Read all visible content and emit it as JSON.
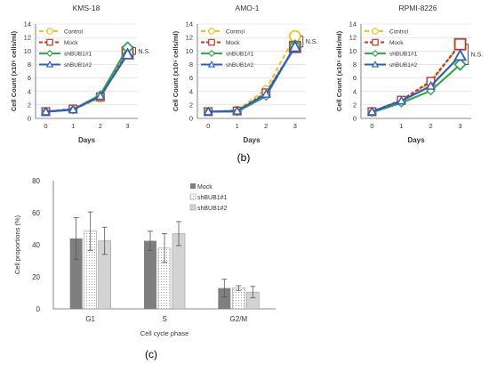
{
  "figure": {
    "panel_labels": [
      "(b)",
      "(c)"
    ]
  },
  "colors": {
    "Control": "#f0c419",
    "Mock": "#c0392b",
    "shBUB1#1": "#3aa64a",
    "shBUB1#2": "#2b5fc7",
    "bar_mock": "#7f7f7f",
    "bar_shbub1_1": "#ffffff",
    "bar_shbub1_2": "#d3d3d3",
    "axis": "#666666",
    "grid": "#d9d9d9"
  },
  "chart_data": [
    {
      "type": "line",
      "title": "KMS-18",
      "xlabel": "Days",
      "ylabel": "Cell Count  (x10⁵ cells/ml)",
      "x": [
        0,
        1,
        2,
        3
      ],
      "ylim": [
        0,
        14
      ],
      "yticks": [
        0,
        2,
        4,
        6,
        8,
        10,
        12,
        14
      ],
      "grid": true,
      "legend_position": "top-left",
      "annotation": "N.S.",
      "series": [
        {
          "name": "Control",
          "values": [
            1.0,
            1.3,
            3.0,
            10.0
          ]
        },
        {
          "name": "Mock",
          "values": [
            1.0,
            1.4,
            3.2,
            9.8
          ]
        },
        {
          "name": "shBUB1#1",
          "values": [
            1.0,
            1.3,
            3.5,
            10.5
          ]
        },
        {
          "name": "shBUB1#2",
          "values": [
            1.0,
            1.3,
            3.3,
            9.5
          ]
        }
      ]
    },
    {
      "type": "line",
      "title": "AMO-1",
      "xlabel": "Days",
      "ylabel": "Cell Count  (x10⁵ cells/ml)",
      "x": [
        0,
        1,
        2,
        3
      ],
      "ylim": [
        0,
        14
      ],
      "yticks": [
        0,
        2,
        4,
        6,
        8,
        10,
        12,
        14
      ],
      "grid": true,
      "legend_position": "top-left",
      "annotation": "N.S.",
      "series": [
        {
          "name": "Control",
          "values": [
            1.0,
            1.2,
            4.3,
            12.2
          ]
        },
        {
          "name": "Mock",
          "values": [
            1.0,
            1.1,
            3.8,
            10.6
          ]
        },
        {
          "name": "shBUB1#1",
          "values": [
            1.0,
            1.0,
            3.3,
            10.8
          ]
        },
        {
          "name": "shBUB1#2",
          "values": [
            1.0,
            1.1,
            3.6,
            10.6
          ]
        }
      ]
    },
    {
      "type": "line",
      "title": "RPMI-8226",
      "xlabel": "Days",
      "ylabel": "Cell Count  (x10⁵ cells/ml)",
      "x": [
        0,
        1,
        2,
        3
      ],
      "ylim": [
        0,
        14
      ],
      "yticks": [
        0,
        2,
        4,
        6,
        8,
        10,
        12,
        14
      ],
      "grid": true,
      "legend_position": "top-left",
      "annotation": "N.S.",
      "series": [
        {
          "name": "Control",
          "values": [
            1.0,
            2.6,
            5.3,
            11.0
          ]
        },
        {
          "name": "Mock",
          "values": [
            1.0,
            2.7,
            5.5,
            11.0
          ]
        },
        {
          "name": "shBUB1#1",
          "values": [
            0.9,
            2.3,
            4.1,
            8.0
          ]
        },
        {
          "name": "shBUB1#2",
          "values": [
            1.0,
            2.6,
            4.8,
            9.3
          ]
        }
      ]
    },
    {
      "type": "bar",
      "title": "",
      "xlabel": "Cell cycle phase",
      "ylabel": "Cell proportions   (%)",
      "categories": [
        "G1",
        "S",
        "G2/M"
      ],
      "ylim": [
        0,
        80
      ],
      "yticks": [
        0,
        20,
        40,
        60,
        80
      ],
      "grid": false,
      "legend_position": "top-right",
      "series": [
        {
          "name": "Mock",
          "values": [
            44,
            42.5,
            13
          ],
          "errors": [
            13,
            6,
            5.5
          ]
        },
        {
          "name": "shBUB1#1",
          "values": [
            48.5,
            38,
            13
          ],
          "errors": [
            12,
            9,
            1.5
          ]
        },
        {
          "name": "shBUB1#2",
          "values": [
            42.5,
            47,
            10.5
          ],
          "errors": [
            8.5,
            7.5,
            3.5
          ]
        }
      ]
    }
  ]
}
